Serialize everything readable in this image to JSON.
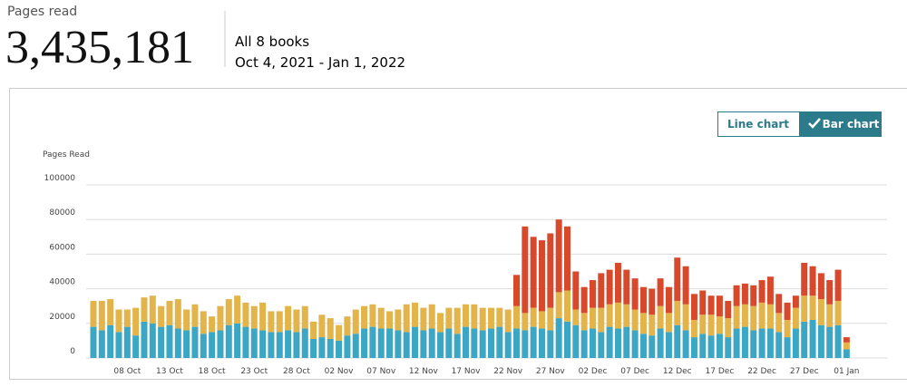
{
  "header": {
    "label": "Pages read",
    "total": "3,435,181",
    "books": "All 8 books",
    "dates": "Oct 4, 2021 - Jan 1, 2022"
  },
  "buttons": [
    "Line chart",
    "Bar chart"
  ],
  "chart_data": {
    "type": "stacked_bar",
    "ylabel": "Pages Read",
    "categories": [
      null,
      null,
      null,
      null,
      "08 Oct",
      null,
      null,
      null,
      null,
      "13 Oct",
      null,
      null,
      null,
      null,
      "18 Oct",
      null,
      null,
      null,
      null,
      "23 Oct",
      null,
      null,
      null,
      null,
      "28 Oct",
      null,
      null,
      null,
      null,
      "02 Nov",
      null,
      null,
      null,
      null,
      "07 Nov",
      null,
      null,
      null,
      null,
      "12 Nov",
      null,
      null,
      null,
      null,
      "17 Nov",
      null,
      null,
      null,
      null,
      "22 Nov",
      null,
      null,
      null,
      null,
      "27 Nov",
      null,
      null,
      null,
      null,
      "02 Dec",
      null,
      null,
      null,
      null,
      "07 Dec",
      null,
      null,
      null,
      null,
      "12 Dec",
      null,
      null,
      null,
      null,
      "17 Dec",
      null,
      null,
      null,
      null,
      "22 Dec",
      null,
      null,
      null,
      null,
      "27 Dec",
      null,
      null,
      null,
      null,
      "01 Jan"
    ],
    "series": [
      {
        "color": "#3ba7c5",
        "values": [
          18000,
          16000,
          19000,
          15000,
          18000,
          13000,
          21000,
          20000,
          18000,
          19000,
          17000,
          16000,
          18000,
          14000,
          15000,
          16000,
          19000,
          20000,
          18000,
          17000,
          16000,
          15000,
          15000,
          16000,
          15000,
          17000,
          11000,
          12000,
          11000,
          10000,
          13000,
          14000,
          17000,
          18000,
          17000,
          17000,
          16000,
          15000,
          18000,
          16000,
          17000,
          15000,
          17000,
          14000,
          18000,
          17000,
          16000,
          17000,
          18000,
          15000,
          17000,
          16000,
          18000,
          17000,
          16000,
          23000,
          21000,
          19000,
          16000,
          17000,
          15000,
          18000,
          17000,
          18000,
          16000,
          14000,
          13000,
          17000,
          15000,
          19000,
          16000,
          12000,
          14000,
          13000,
          14000,
          12000,
          17000,
          18000,
          16000,
          17000,
          17000,
          15000,
          12000,
          17000,
          21000,
          22000,
          19000,
          18000,
          19000,
          5000
        ]
      },
      {
        "color": "#e2b44a",
        "values": [
          15000,
          17000,
          15000,
          13000,
          10000,
          16000,
          14000,
          16000,
          12000,
          14000,
          17000,
          12000,
          13000,
          13000,
          9000,
          14000,
          15000,
          16000,
          14000,
          13000,
          16000,
          12000,
          12000,
          14000,
          13000,
          13000,
          10000,
          13000,
          12000,
          9000,
          11000,
          14000,
          13000,
          13000,
          12000,
          10000,
          12000,
          16000,
          14000,
          13000,
          14000,
          11000,
          12000,
          15000,
          13000,
          14000,
          13000,
          12000,
          11000,
          13000,
          13000,
          10000,
          11000,
          10000,
          13000,
          15000,
          18000,
          9000,
          10000,
          12000,
          14000,
          13000,
          15000,
          13000,
          12000,
          12000,
          12000,
          13000,
          11000,
          14000,
          15000,
          10000,
          11000,
          12000,
          10000,
          11000,
          13000,
          13000,
          14000,
          15000,
          14000,
          11000,
          10000,
          12000,
          15000,
          14000,
          15000,
          13000,
          14000,
          4000
        ]
      },
      {
        "color": "#d8492c",
        "values": [
          0,
          0,
          0,
          0,
          0,
          0,
          0,
          0,
          0,
          0,
          0,
          0,
          0,
          0,
          0,
          0,
          0,
          0,
          0,
          0,
          0,
          0,
          0,
          0,
          0,
          0,
          0,
          0,
          0,
          0,
          0,
          0,
          0,
          0,
          0,
          0,
          0,
          0,
          0,
          0,
          0,
          0,
          0,
          0,
          0,
          0,
          0,
          0,
          0,
          0,
          18000,
          50000,
          41000,
          41000,
          43000,
          42000,
          37000,
          22000,
          15000,
          16000,
          20000,
          20000,
          23000,
          20000,
          18000,
          15000,
          15000,
          16000,
          15000,
          25000,
          22000,
          15000,
          14000,
          11000,
          12000,
          10000,
          12000,
          12000,
          12000,
          13000,
          16000,
          11000,
          10000,
          7000,
          19000,
          17000,
          15000,
          14000,
          18000,
          3000
        ]
      }
    ],
    "ylim": [
      0,
      100000
    ],
    "yticks": [
      0,
      20000,
      40000,
      60000,
      80000,
      100000
    ],
    "grid": true
  }
}
